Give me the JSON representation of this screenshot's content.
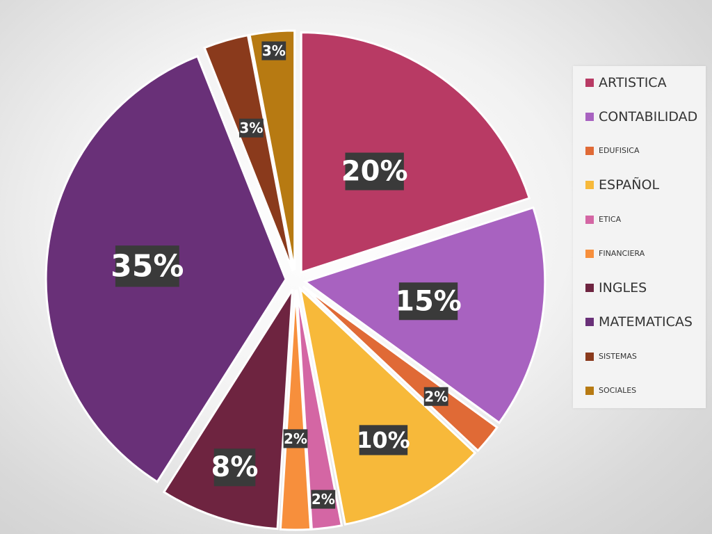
{
  "chart_data": {
    "type": "pie",
    "title": "",
    "categories": [
      "ARTISTICA",
      "CONTABILIDAD",
      "EDUFISICA",
      "ESPAÑOL",
      "ETICA",
      "FINANCIERA",
      "INGLES",
      "MATEMATICAS",
      "SISTEMAS",
      "SOCIALES"
    ],
    "values": [
      20,
      15,
      2,
      10,
      2,
      2,
      8,
      35,
      3,
      3
    ],
    "labels": [
      "20%",
      "15%",
      "2%",
      "10%",
      "2%",
      "2%",
      "8%",
      "35%",
      "3%",
      "3%"
    ],
    "colors": [
      "#b83a64",
      "#a862c0",
      "#e06a36",
      "#f7b93a",
      "#d466a4",
      "#f78f3c",
      "#6e2440",
      "#693078",
      "#8a3a1c",
      "#b77a12"
    ],
    "legend_position": "right",
    "exploded": true
  },
  "legend": {
    "items": [
      {
        "label": "ARTISTICA",
        "color": "#b83a64",
        "size": "big"
      },
      {
        "label": "CONTABILIDAD",
        "color": "#a862c0",
        "size": "big"
      },
      {
        "label": "EDUFISICA",
        "color": "#e06a36",
        "size": "small"
      },
      {
        "label": "ESPAÑOL",
        "color": "#f7b93a",
        "size": "big"
      },
      {
        "label": "ETICA",
        "color": "#d466a4",
        "size": "small"
      },
      {
        "label": "FINANCIERA",
        "color": "#f78f3c",
        "size": "small"
      },
      {
        "label": "INGLES",
        "color": "#6e2440",
        "size": "big"
      },
      {
        "label": "MATEMATICAS",
        "color": "#693078",
        "size": "big"
      },
      {
        "label": "SISTEMAS",
        "color": "#8a3a1c",
        "size": "small"
      },
      {
        "label": "SOCIALES",
        "color": "#b77a12",
        "size": "small"
      }
    ]
  }
}
